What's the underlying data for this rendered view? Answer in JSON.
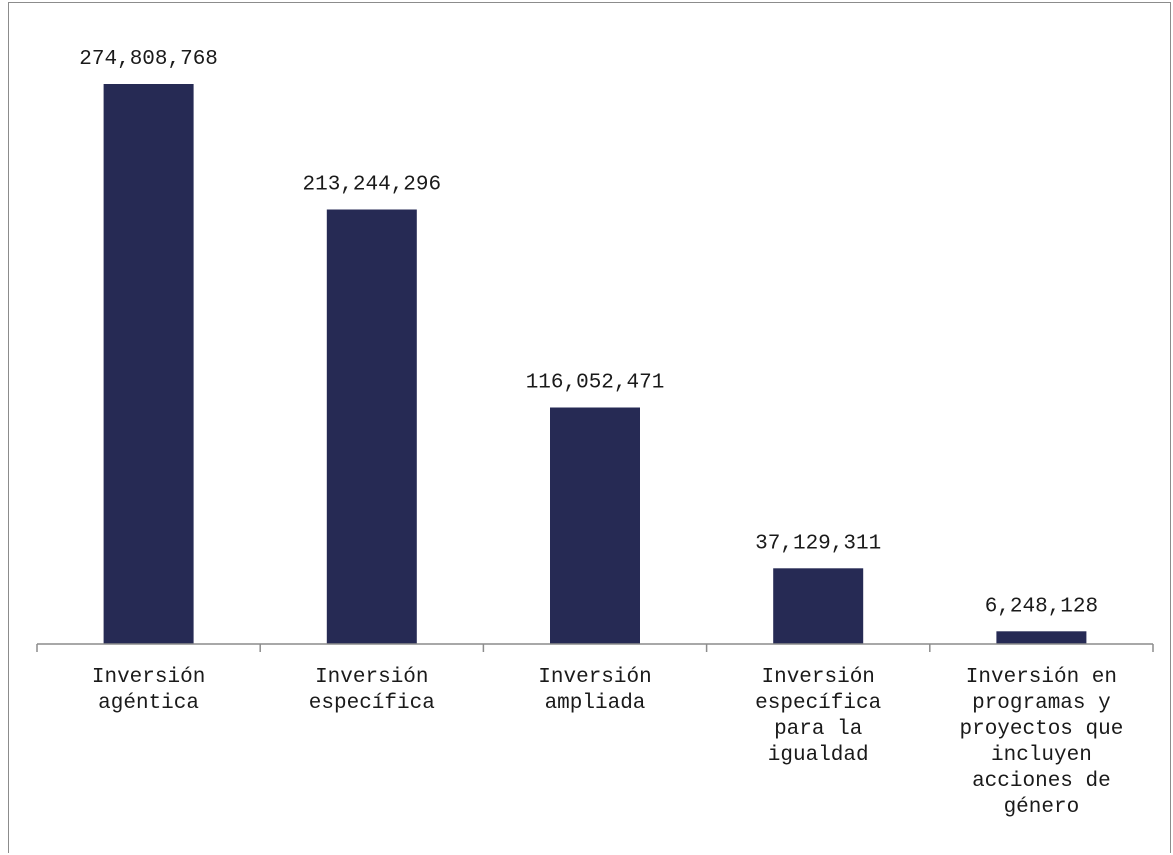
{
  "chart_data": {
    "type": "bar",
    "title": "",
    "xlabel": "",
    "ylabel": "",
    "categories": [
      "Inversión agéntica",
      "Inversión específica",
      "Inversión ampliada",
      "Inversión específica para la igualdad",
      "Inversión en programas y proyectos que incluyen acciones de género"
    ],
    "category_lines": [
      [
        "Inversión",
        "agéntica"
      ],
      [
        "Inversión",
        "específica"
      ],
      [
        "Inversión",
        "ampliada"
      ],
      [
        "Inversión",
        "específica",
        "para la",
        "igualdad"
      ],
      [
        "Inversión en",
        "programas y",
        "proyectos que",
        "incluyen",
        "acciones de",
        "género"
      ]
    ],
    "values": [
      274808768,
      213244296,
      116052471,
      37129311,
      6248128
    ],
    "value_labels": [
      "274,808,768",
      "213,244,296",
      "116,052,471",
      "37,129,311",
      "6,248,128"
    ],
    "bar_color": "#262a54",
    "axis_color": "#8c8c8c",
    "grid": false,
    "legend": "none"
  }
}
